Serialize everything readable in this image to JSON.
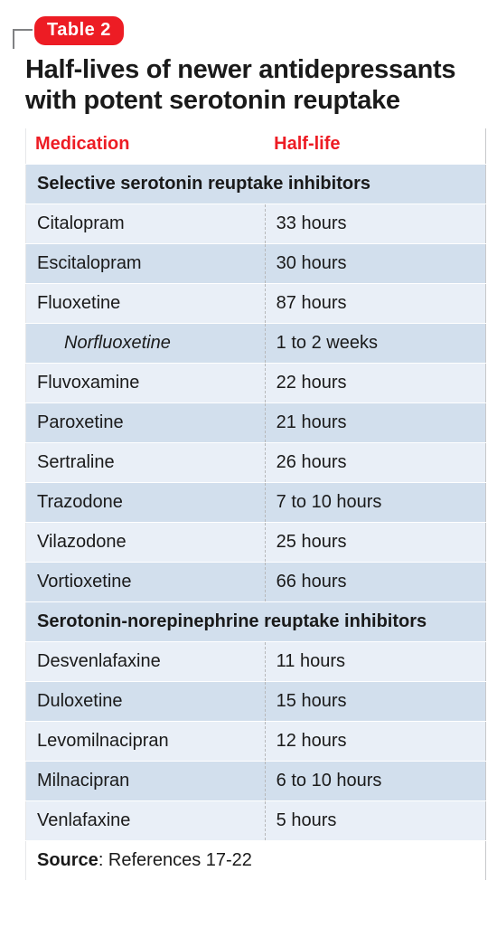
{
  "badge": {
    "label": "Table 2",
    "bg": "#ed1c24"
  },
  "title": "Half-lives of newer antidepressants with potent serotonin reuptake",
  "columns": {
    "medication": "Medication",
    "halflife": "Half-life",
    "header_color": "#ed1c24"
  },
  "row_colors": {
    "odd": "#d2dfed",
    "even": "#e9eff7",
    "section": "#d2dfed"
  },
  "sections": [
    {
      "heading": "Selective serotonin reuptake inhibitors",
      "rows": [
        {
          "med": "Citalopram",
          "hl": "33 hours"
        },
        {
          "med": "Escitalopram",
          "hl": "30 hours"
        },
        {
          "med": "Fluoxetine",
          "hl": "87 hours"
        },
        {
          "med": "Norfluoxetine",
          "hl": "1 to 2 weeks",
          "indent": true
        },
        {
          "med": "Fluvoxamine",
          "hl": "22 hours"
        },
        {
          "med": "Paroxetine",
          "hl": "21 hours"
        },
        {
          "med": "Sertraline",
          "hl": "26 hours"
        },
        {
          "med": "Trazodone",
          "hl": "7 to 10 hours"
        },
        {
          "med": "Vilazodone",
          "hl": "25 hours"
        },
        {
          "med": "Vortioxetine",
          "hl": "66 hours"
        }
      ]
    },
    {
      "heading": "Serotonin-norepinephrine reuptake inhibitors",
      "rows": [
        {
          "med": "Desvenlafaxine",
          "hl": "11 hours"
        },
        {
          "med": "Duloxetine",
          "hl": "15 hours"
        },
        {
          "med": "Levomilnacipran",
          "hl": "12 hours"
        },
        {
          "med": "Milnacipran",
          "hl": "6 to 10 hours"
        },
        {
          "med": "Venlafaxine",
          "hl": "5 hours"
        }
      ]
    }
  ],
  "source": {
    "label": "Source",
    "text": ": References 17-22"
  }
}
